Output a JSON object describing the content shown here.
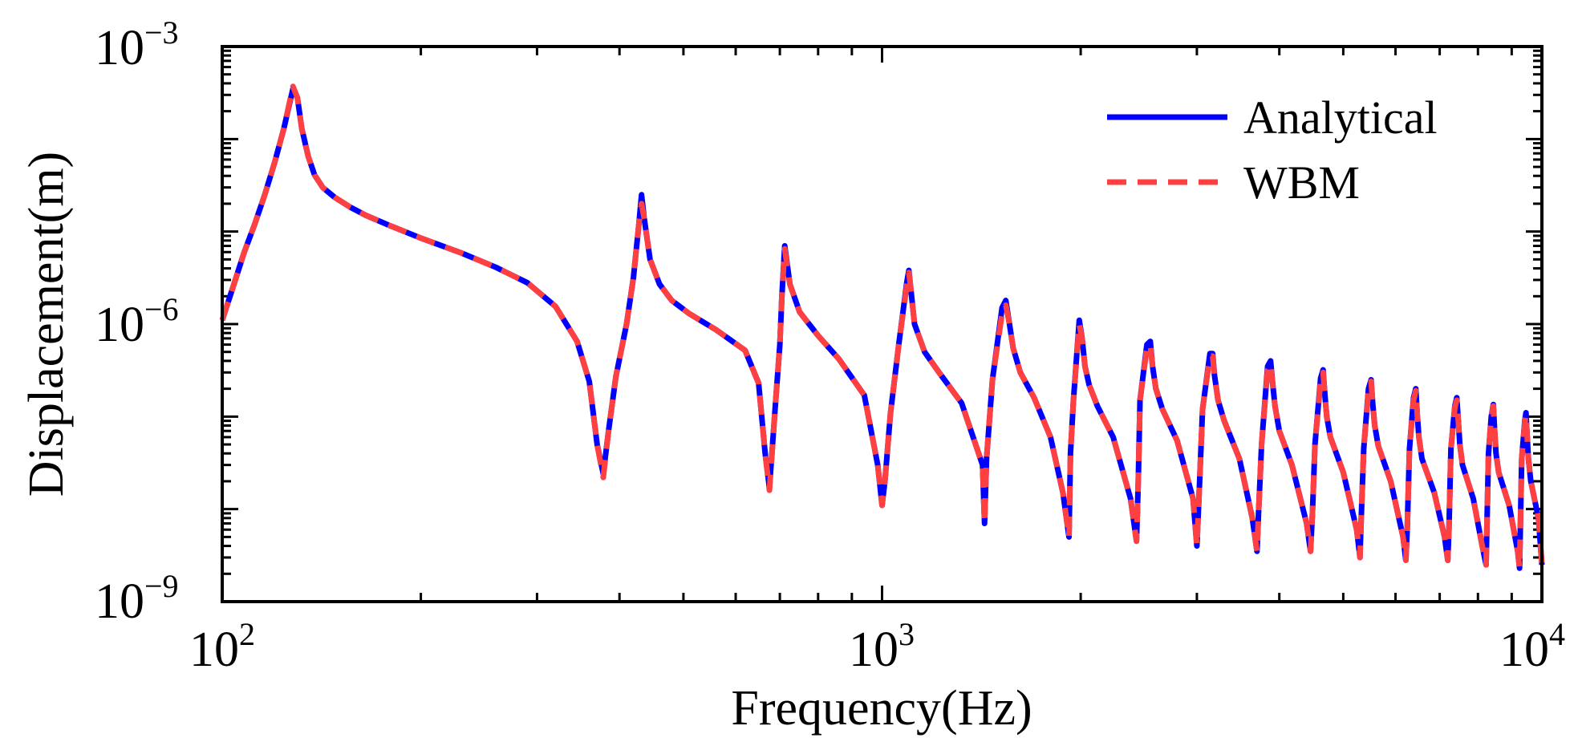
{
  "chart_data": {
    "type": "line",
    "xscale": "log",
    "yscale": "log",
    "title": "",
    "xlabel": "Frequency(Hz)",
    "ylabel": "Displacement(m)",
    "xlim": [
      100,
      10000
    ],
    "ylim": [
      1e-09,
      0.001
    ],
    "grid": false,
    "legend_position": "top-right",
    "x_ticks": [
      {
        "base": "10",
        "exp": "2",
        "value": 100
      },
      {
        "base": "10",
        "exp": "3",
        "value": 1000
      },
      {
        "base": "10",
        "exp": "4",
        "value": 10000
      }
    ],
    "y_ticks": [
      {
        "base": "10",
        "exp": "−3",
        "value": 0.001
      },
      {
        "base": "10",
        "exp": "−6",
        "value": 1e-06
      },
      {
        "base": "10",
        "exp": "−9",
        "value": 1e-09
      }
    ],
    "x": [
      100,
      104,
      108,
      112,
      116,
      120,
      124,
      128,
      130,
      132,
      135,
      138,
      142,
      148,
      156,
      165,
      180,
      200,
      230,
      260,
      290,
      320,
      345,
      360,
      370,
      378,
      385,
      395,
      410,
      420,
      428,
      432,
      436,
      445,
      460,
      480,
      510,
      560,
      620,
      650,
      665,
      675,
      690,
      700,
      705,
      712,
      725,
      750,
      800,
      860,
      940,
      985,
      1000,
      1010,
      1030,
      1060,
      1090,
      1098,
      1103,
      1120,
      1160,
      1220,
      1320,
      1420,
      1430,
      1440,
      1470,
      1520,
      1540,
      1560,
      1580,
      1620,
      1700,
      1800,
      1880,
      1920,
      1930,
      1950,
      1990,
      2010,
      2030,
      2060,
      2120,
      2240,
      2380,
      2430,
      2445,
      2460,
      2520,
      2550,
      2570,
      2600,
      2660,
      2800,
      2960,
      3000,
      3020,
      3060,
      3140,
      3170,
      3190,
      3230,
      3300,
      3480,
      3640,
      3700,
      3720,
      3760,
      3840,
      3880,
      3910,
      3940,
      4000,
      4180,
      4400,
      4460,
      4490,
      4530,
      4620,
      4660,
      4690,
      4720,
      4780,
      5000,
      5240,
      5300,
      5320,
      5370,
      5460,
      5510,
      5540,
      5580,
      5650,
      5900,
      6160,
      6220,
      6250,
      6300,
      6390,
      6440,
      6470,
      6510,
      6580,
      6870,
      7120,
      7200,
      7230,
      7280,
      7380,
      7430,
      7470,
      7510,
      7580,
      7870,
      8120,
      8230,
      8250,
      8300,
      8380,
      8440,
      8480,
      8520,
      8600,
      8920,
      9190,
      9250,
      9270,
      9320,
      9420,
      9460,
      9500,
      9540,
      9620,
      9880,
      10000
    ],
    "series": [
      {
        "name": "Analytical",
        "color": "#0000ff",
        "dash": "solid",
        "values": [
          1.1e-06,
          2.6e-06,
          6e-06,
          1.2e-05,
          2.5e-05,
          5.5e-05,
          0.00013,
          0.00035,
          0.00028,
          0.00013,
          6.5e-05,
          4.1e-05,
          3e-05,
          2.35e-05,
          1.85e-05,
          1.5e-05,
          1.15e-05,
          8.5e-06,
          5.9e-06,
          4.1e-06,
          2.8e-06,
          1.55e-06,
          6.5e-07,
          2.4e-07,
          5e-08,
          2.4e-08,
          7e-08,
          2.7e-07,
          1e-06,
          3.2e-06,
          1.2e-05,
          2.5e-05,
          1.4e-05,
          5e-06,
          2.7e-06,
          1.8e-06,
          1.3e-06,
          8.7e-07,
          5.2e-07,
          2.3e-07,
          4e-08,
          1.7e-08,
          1.5e-07,
          6e-07,
          2e-06,
          7e-06,
          2.7e-06,
          1.35e-06,
          7.5e-07,
          4.2e-07,
          1.7e-07,
          3e-08,
          1.1e-08,
          2e-08,
          1.1e-07,
          6e-07,
          2.8e-06,
          3.8e-06,
          2.8e-06,
          1e-06,
          5e-07,
          3e-07,
          1.4e-07,
          3e-08,
          7e-09,
          3.5e-08,
          2.5e-07,
          1.5e-06,
          1.8e-06,
          1e-06,
          5.5e-07,
          3e-07,
          1.6e-07,
          6e-08,
          1.5e-08,
          5e-09,
          4e-08,
          1.5e-07,
          1.1e-06,
          7e-07,
          3.5e-07,
          2.2e-07,
          1.3e-07,
          6e-08,
          1.3e-08,
          4.5e-09,
          2e-08,
          1.5e-07,
          6e-07,
          6.5e-07,
          3.5e-07,
          2e-07,
          1.2e-07,
          5.5e-08,
          1.3e-08,
          4e-09,
          1.2e-08,
          1.2e-07,
          4.8e-07,
          4.8e-07,
          2.8e-07,
          1.5e-07,
          9e-08,
          3.5e-08,
          8e-09,
          3.5e-09,
          9e-09,
          5e-08,
          3.5e-07,
          4e-07,
          2.2e-07,
          1.3e-07,
          7e-08,
          3e-08,
          7e-09,
          3.5e-09,
          9e-09,
          5e-08,
          2.6e-07,
          3.2e-07,
          1.7e-07,
          1e-07,
          6e-08,
          2.5e-08,
          6e-09,
          3e-09,
          7e-09,
          4.5e-08,
          2e-07,
          2.5e-07,
          1.4e-07,
          8e-08,
          4.8e-08,
          2e-08,
          5e-09,
          2.8e-09,
          6e-09,
          4.5e-08,
          1.6e-07,
          2e-07,
          1.1e-07,
          6e-08,
          3.5e-08,
          1.5e-08,
          5e-09,
          2.8e-09,
          6e-09,
          4.5e-08,
          1.3e-07,
          1.6e-07,
          9e-08,
          5e-08,
          3e-08,
          1.3e-08,
          4e-09,
          2.5e-09,
          5.5e-09,
          4e-08,
          1e-07,
          1.35e-07,
          7e-08,
          4e-08,
          2.5e-08,
          1.1e-08,
          3.5e-09,
          2.3e-09,
          5e-09,
          3.5e-08,
          9e-08,
          1.1e-07,
          6e-08,
          3.5e-08,
          2e-08,
          8e-09,
          2.5e-09
        ]
      },
      {
        "name": "WBM",
        "color": "#ff4040",
        "dash": "dashed",
        "values": [
          1.1e-06,
          2.6e-06,
          6e-06,
          1.2e-05,
          2.5e-05,
          5.5e-05,
          0.00013,
          0.00037,
          0.00028,
          0.00013,
          6.5e-05,
          4.1e-05,
          3e-05,
          2.35e-05,
          1.85e-05,
          1.5e-05,
          1.15e-05,
          8.5e-06,
          5.9e-06,
          4.1e-06,
          2.8e-06,
          1.55e-06,
          6.5e-07,
          2.4e-07,
          5e-08,
          2.2e-08,
          7e-08,
          2.7e-07,
          1e-06,
          3.2e-06,
          1.2e-05,
          2e-05,
          1.4e-05,
          5e-06,
          2.7e-06,
          1.8e-06,
          1.3e-06,
          8.7e-07,
          5.2e-07,
          2.3e-07,
          4e-08,
          1.6e-08,
          1.5e-07,
          6e-07,
          2e-06,
          6.5e-06,
          2.7e-06,
          1.35e-06,
          7.5e-07,
          4.2e-07,
          1.7e-07,
          3e-08,
          1.1e-08,
          2e-08,
          1.1e-07,
          6e-07,
          2.6e-06,
          3.6e-06,
          2.8e-06,
          1e-06,
          5e-07,
          3e-07,
          1.4e-07,
          3e-08,
          7e-09,
          3.5e-08,
          2.5e-07,
          1.3e-06,
          1.6e-06,
          1e-06,
          5.5e-07,
          3e-07,
          1.6e-07,
          6e-08,
          1.5e-08,
          5e-09,
          4e-08,
          1.5e-07,
          1e-06,
          7e-07,
          3.5e-07,
          2.2e-07,
          1.3e-07,
          6e-08,
          1.3e-08,
          4.5e-09,
          2e-08,
          1.5e-07,
          5.5e-07,
          6e-07,
          3.5e-07,
          2e-07,
          1.2e-07,
          5.5e-08,
          1.3e-08,
          4e-09,
          1.2e-08,
          1.2e-07,
          4.5e-07,
          4.5e-07,
          2.8e-07,
          1.5e-07,
          9e-08,
          3.5e-08,
          8e-09,
          3.5e-09,
          9e-09,
          5e-08,
          3.2e-07,
          3.7e-07,
          2.2e-07,
          1.3e-07,
          7e-08,
          3e-08,
          7e-09,
          3.5e-09,
          9e-09,
          5e-08,
          2.4e-07,
          3e-07,
          1.7e-07,
          1e-07,
          6e-08,
          2.5e-08,
          6e-09,
          3e-09,
          7e-09,
          4.5e-08,
          1.9e-07,
          2.4e-07,
          1.4e-07,
          8e-08,
          4.8e-08,
          2e-08,
          5e-09,
          2.8e-09,
          6e-09,
          4.5e-08,
          1.5e-07,
          1.9e-07,
          1.1e-07,
          6e-08,
          3.5e-08,
          1.5e-08,
          5e-09,
          2.8e-09,
          6e-09,
          4.5e-08,
          1.25e-07,
          1.5e-07,
          9e-08,
          5e-08,
          3e-08,
          1.3e-08,
          4e-09,
          2.5e-09,
          5.5e-09,
          4e-08,
          1e-07,
          1.3e-07,
          7e-08,
          4e-08,
          2.5e-08,
          1.1e-08,
          3.5e-09,
          2.3e-09,
          5e-09,
          3.5e-08,
          8.5e-08,
          1.05e-07,
          6e-08,
          3.5e-08,
          2e-08,
          8e-09,
          2.5e-09
        ]
      }
    ]
  }
}
